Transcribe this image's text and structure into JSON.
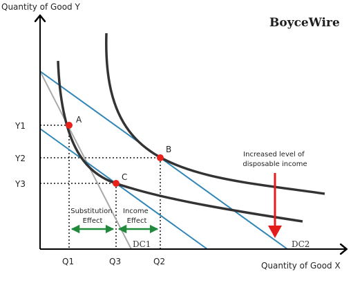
{
  "brand": "BoyceWire",
  "axes": {
    "y_label": "Quantity of Good Y",
    "x_label": "Quantity of Good X"
  },
  "y_ticks": [
    "Y1",
    "Y2",
    "Y3"
  ],
  "x_ticks": [
    "Q1",
    "Q3",
    "Q2"
  ],
  "points": [
    "A",
    "B",
    "C"
  ],
  "effects": {
    "substitution": [
      "Substitution",
      "Effect"
    ],
    "income": [
      "Income",
      "Effect"
    ]
  },
  "constraints": {
    "dc1": "DC1",
    "dc2": "DC2"
  },
  "annotation": [
    "Increased level of",
    "disposable income"
  ],
  "colors": {
    "indifference_curve": "#333333",
    "budget_line": "#2f86b7",
    "pivot_line": "#a9a9a9",
    "point": "#e8221b",
    "effect_arrow": "#1e8a3a",
    "income_arrow": "#e31b1b",
    "guide_line": "#111111"
  }
}
